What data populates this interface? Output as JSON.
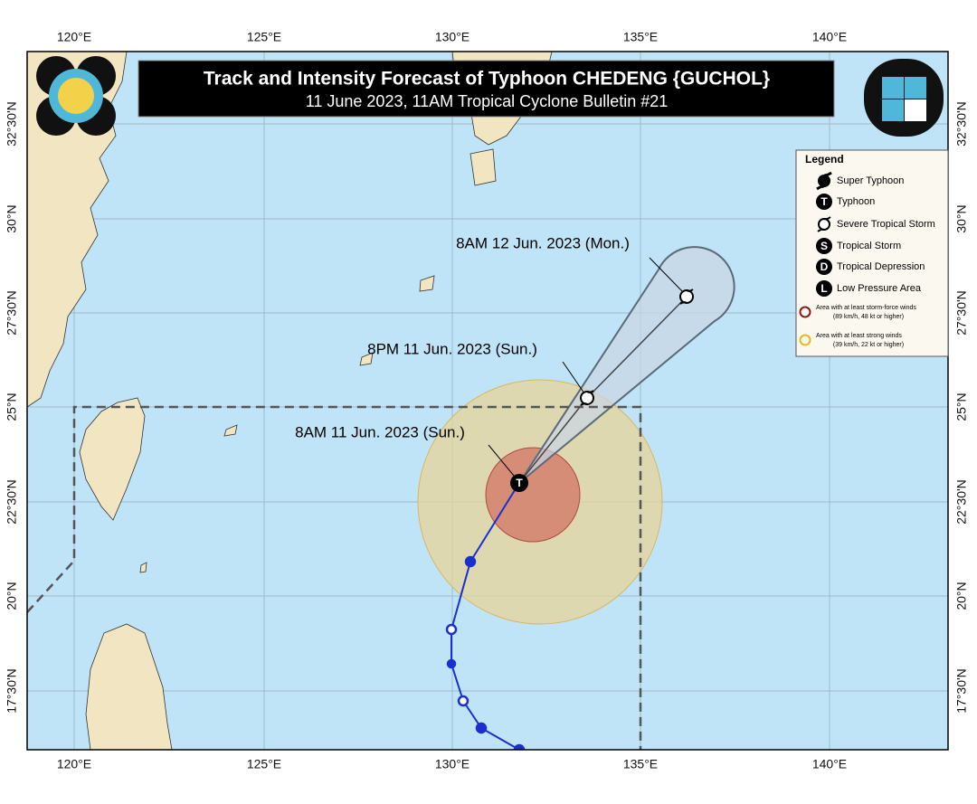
{
  "header": {
    "title": "Track and Intensity Forecast of Typhoon CHEDENG {GUCHOL}",
    "subtitle": "11 June 2023, 11AM Tropical Cyclone Bulletin #21"
  },
  "map": {
    "longitude_labels": [
      "120°E",
      "125°E",
      "130°E",
      "135°E",
      "140°E"
    ],
    "latitude_labels": [
      "32°30'N",
      "30°N",
      "27°30'N",
      "25°N",
      "22°30'N",
      "20°N",
      "17°30'N"
    ],
    "forecast_points": [
      {
        "label": "8AM 11 Jun. 2023 (Sun.)",
        "symbol": "T"
      },
      {
        "label": "8PM 11 Jun. 2023 (Sun.)"
      },
      {
        "label": "8AM 12 Jun. 2023 (Mon.)"
      }
    ]
  },
  "legend": {
    "title": "Legend",
    "items": [
      {
        "label": "Super Typhoon"
      },
      {
        "symbol": "T",
        "label": "Typhoon"
      },
      {
        "label": "Severe Tropical Storm"
      },
      {
        "symbol": "S",
        "label": "Tropical Storm"
      },
      {
        "symbol": "D",
        "label": "Tropical Depression"
      },
      {
        "symbol": "L",
        "label": "Low Pressure Area"
      },
      {
        "label": "Area with at least storm-force winds",
        "detail": "(89 km/h, 48 kt or higher)"
      },
      {
        "label": "Area with at least strong winds",
        "detail": "(39 km/h, 22 kt or higher)"
      }
    ]
  }
}
